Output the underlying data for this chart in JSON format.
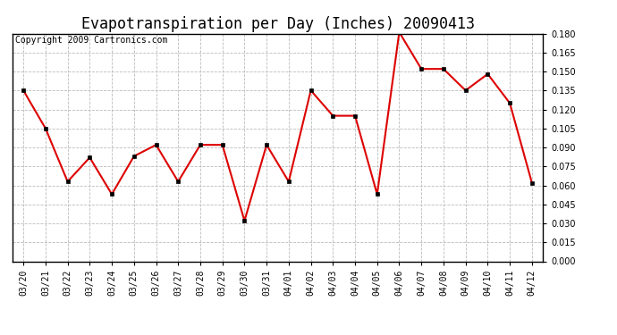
{
  "title": "Evapotranspiration per Day (Inches) 20090413",
  "copyright_text": "Copyright 2009 Cartronics.com",
  "dates": [
    "03/20",
    "03/21",
    "03/22",
    "03/23",
    "03/24",
    "03/25",
    "03/26",
    "03/27",
    "03/28",
    "03/29",
    "03/30",
    "03/31",
    "04/01",
    "04/02",
    "04/03",
    "04/04",
    "04/05",
    "04/06",
    "04/07",
    "04/08",
    "04/09",
    "04/10",
    "04/11",
    "04/12"
  ],
  "values": [
    0.135,
    0.105,
    0.063,
    0.082,
    0.053,
    0.083,
    0.092,
    0.063,
    0.092,
    0.092,
    0.032,
    0.092,
    0.063,
    0.135,
    0.115,
    0.115,
    0.053,
    0.181,
    0.152,
    0.152,
    0.135,
    0.148,
    0.125,
    0.062
  ],
  "line_color": "#dd0000",
  "marker": "s",
  "marker_size": 3,
  "line_width": 1.5,
  "background_color": "#ffffff",
  "grid_color": "#bbbbbb",
  "ylim": [
    0.0,
    0.18
  ],
  "yticks": [
    0.0,
    0.015,
    0.03,
    0.045,
    0.06,
    0.075,
    0.09,
    0.105,
    0.12,
    0.135,
    0.15,
    0.165,
    0.18
  ],
  "title_fontsize": 12,
  "copyright_fontsize": 7,
  "tick_fontsize": 7
}
